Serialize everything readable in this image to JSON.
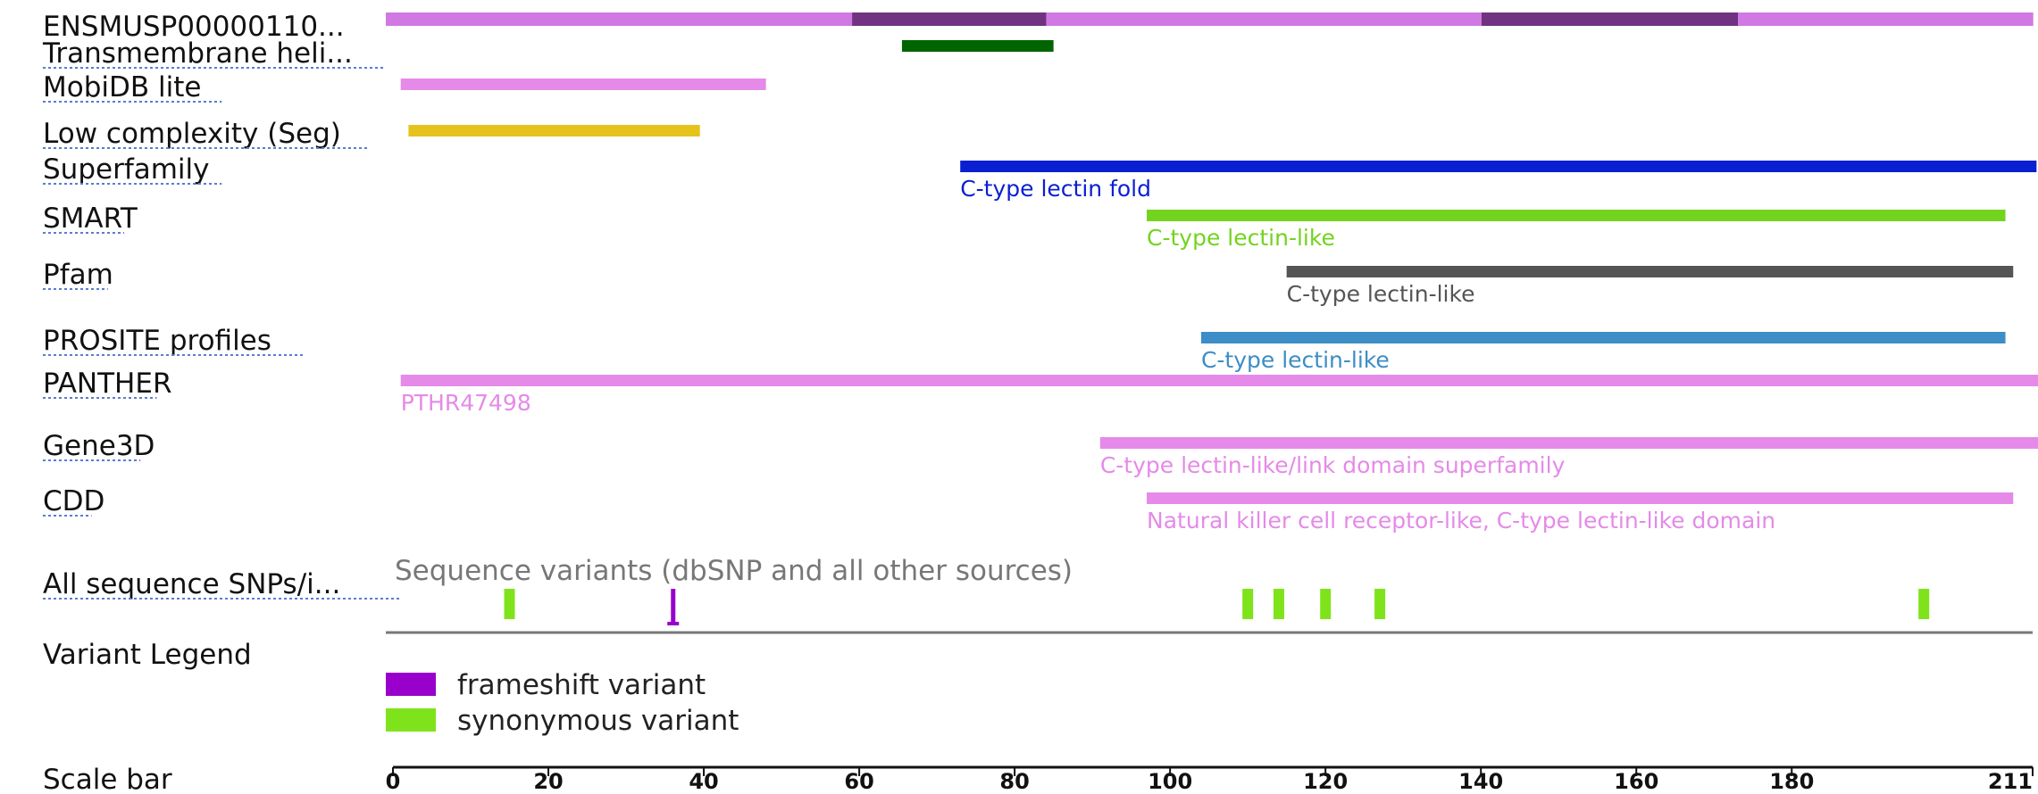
{
  "sequence_length": 211,
  "protein_track": {
    "label": "ENSMUSP00000110...",
    "color": "#d079e3",
    "exon_color": "#6f3381",
    "segments": [
      {
        "start": 0,
        "end": 60,
        "alt": false
      },
      {
        "start": 60,
        "end": 85,
        "alt": true
      },
      {
        "start": 85,
        "end": 141,
        "alt": false
      },
      {
        "start": 141,
        "end": 174,
        "alt": true
      },
      {
        "start": 174,
        "end": 212,
        "alt": false
      }
    ]
  },
  "tracks": [
    {
      "id": "transmembrane",
      "label": "Transmembrane heli...",
      "color": "#006400",
      "features": [
        {
          "start": 65.5,
          "end": 85,
          "label": ""
        }
      ]
    },
    {
      "id": "mobidb",
      "label": "MobiDB lite",
      "color": "#e58ae8",
      "features": [
        {
          "start": 1,
          "end": 48,
          "label": ""
        }
      ]
    },
    {
      "id": "seg",
      "label": "Low complexity (Seg)",
      "color": "#e6c21c",
      "features": [
        {
          "start": 2,
          "end": 39.5,
          "label": ""
        }
      ]
    },
    {
      "id": "superfamily",
      "label": "Superfamily",
      "color": "#0a1fd1",
      "features": [
        {
          "start": 73,
          "end": 211.5,
          "label": "C-type lectin fold"
        }
      ]
    },
    {
      "id": "smart",
      "label": "SMART",
      "color": "#72d41e",
      "features": [
        {
          "start": 97,
          "end": 207.5,
          "label": "C-type lectin-like"
        }
      ]
    },
    {
      "id": "pfam",
      "label": "Pfam",
      "color": "#555555",
      "features": [
        {
          "start": 115,
          "end": 208.5,
          "label": "C-type lectin-like"
        }
      ]
    },
    {
      "id": "prosite",
      "label": "PROSITE profiles",
      "color": "#3d8dc6",
      "features": [
        {
          "start": 104,
          "end": 207.5,
          "label": "C-type lectin-like"
        }
      ]
    },
    {
      "id": "panther",
      "label": "PANTHER",
      "color": "#e58ae8",
      "features": [
        {
          "start": 1,
          "end": 212,
          "label": "PTHR47498"
        }
      ]
    },
    {
      "id": "gene3d",
      "label": "Gene3D",
      "color": "#e58ae8",
      "features": [
        {
          "start": 91,
          "end": 212,
          "label": "C-type lectin-like/link domain superfamily"
        }
      ]
    },
    {
      "id": "cdd",
      "label": "CDD",
      "color": "#e58ae8",
      "features": [
        {
          "start": 97,
          "end": 208.5,
          "label": "Natural killer cell receptor-like, C-type lectin-like domain"
        }
      ]
    }
  ],
  "snp_track": {
    "label": "All sequence SNPs/i...",
    "title": "Sequence variants (dbSNP and all other sources)",
    "variants": [
      {
        "pos": 15,
        "type": "synonymous"
      },
      {
        "pos": 36,
        "type": "frameshift"
      },
      {
        "pos": 110,
        "type": "synonymous"
      },
      {
        "pos": 114,
        "type": "synonymous"
      },
      {
        "pos": 120,
        "type": "synonymous"
      },
      {
        "pos": 127,
        "type": "synonymous"
      },
      {
        "pos": 197,
        "type": "synonymous"
      }
    ]
  },
  "legend": {
    "label": "Variant Legend",
    "items": [
      {
        "type": "frameshift",
        "text": "frameshift variant",
        "color": "#9900cc"
      },
      {
        "type": "synonymous",
        "text": "synonymous variant",
        "color": "#7fe31c"
      }
    ]
  },
  "scale_bar": {
    "label": "Scale bar",
    "ticks": [
      0,
      20,
      40,
      60,
      80,
      100,
      120,
      140,
      160,
      180,
      211
    ]
  }
}
